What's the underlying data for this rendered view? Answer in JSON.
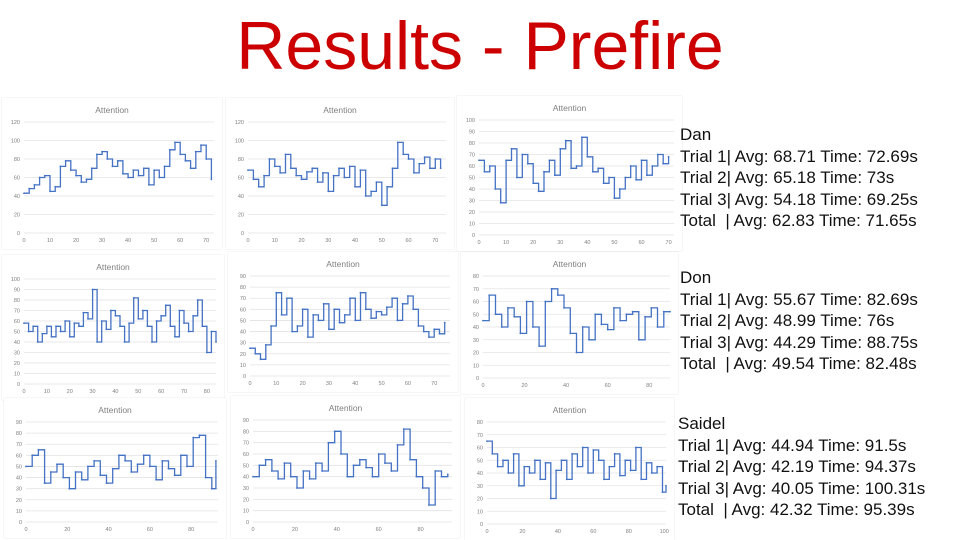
{
  "slide_title": "Results - Prefire",
  "summaries": [
    {
      "name": "Dan",
      "lines": [
        "Trial 1| Avg: 68.71 Time: 72.69s",
        "Trial 2| Avg: 65.18 Time: 73s",
        "Trial 3| Avg: 54.18 Time: 69.25s",
        "Total  | Avg: 62.83 Time: 71.65s"
      ]
    },
    {
      "name": "Don",
      "lines": [
        "Trial 1| Avg: 55.67 Time: 82.69s",
        "Trial 2| Avg: 48.99 Time: 76s",
        "Trial 3| Avg: 44.29 Time: 88.75s",
        "Total  | Avg: 49.54 Time: 82.48s"
      ]
    },
    {
      "name": "Saidel",
      "lines": [
        "Trial 1| Avg: 44.94 Time: 91.5s",
        "Trial 2| Avg: 42.19 Time: 94.37s",
        "Trial 3| Avg: 40.05 Time: 100.31s",
        "Total  | Avg: 42.32 Time: 95.39s"
      ]
    }
  ],
  "chart_data": [
    {
      "type": "line",
      "title": "Attention",
      "series_color": "#4472c4",
      "xticks": [
        0,
        10,
        20,
        30,
        40,
        50,
        60,
        70
      ],
      "yticks": [
        0,
        20,
        40,
        60,
        80,
        100,
        120
      ],
      "xlim": [
        0,
        73
      ],
      "ylim": [
        0,
        120
      ],
      "x": [
        0,
        2,
        4,
        6,
        8,
        10,
        12,
        14,
        16,
        18,
        20,
        22,
        24,
        26,
        28,
        30,
        32,
        34,
        36,
        38,
        40,
        42,
        44,
        46,
        48,
        50,
        52,
        54,
        56,
        58,
        60,
        62,
        64,
        66,
        68,
        70,
        72
      ],
      "values": [
        43,
        48,
        52,
        60,
        62,
        45,
        50,
        72,
        78,
        68,
        62,
        55,
        58,
        70,
        85,
        88,
        80,
        72,
        78,
        64,
        60,
        68,
        62,
        70,
        52,
        68,
        60,
        72,
        90,
        98,
        85,
        78,
        70,
        88,
        95,
        80,
        58
      ]
    },
    {
      "type": "line",
      "title": "Attention",
      "series_color": "#4472c4",
      "xticks": [
        0,
        10,
        20,
        30,
        40,
        50,
        60,
        70
      ],
      "yticks": [
        0,
        20,
        40,
        60,
        80,
        100,
        120
      ],
      "xlim": [
        0,
        74
      ],
      "ylim": [
        0,
        120
      ],
      "x": [
        0,
        2,
        4,
        6,
        8,
        10,
        12,
        14,
        16,
        18,
        20,
        22,
        24,
        26,
        28,
        30,
        32,
        34,
        36,
        38,
        40,
        42,
        44,
        46,
        48,
        50,
        52,
        54,
        56,
        58,
        60,
        62,
        64,
        66,
        68,
        70,
        72
      ],
      "values": [
        68,
        58,
        50,
        62,
        80,
        72,
        65,
        85,
        70,
        62,
        58,
        66,
        70,
        55,
        65,
        45,
        62,
        70,
        60,
        72,
        50,
        68,
        40,
        45,
        55,
        30,
        50,
        70,
        98,
        85,
        80,
        65,
        75,
        82,
        70,
        80,
        70
      ]
    },
    {
      "type": "line",
      "title": "Attention",
      "series_color": "#4472c4",
      "xticks": [
        0,
        10,
        20,
        30,
        40,
        50,
        60,
        70
      ],
      "yticks": [
        0,
        10,
        20,
        30,
        40,
        50,
        60,
        70,
        80,
        90,
        100
      ],
      "xlim": [
        0,
        72
      ],
      "ylim": [
        0,
        100
      ],
      "x": [
        0,
        2,
        4,
        6,
        8,
        10,
        12,
        14,
        16,
        18,
        20,
        22,
        24,
        26,
        28,
        30,
        32,
        34,
        36,
        38,
        40,
        42,
        44,
        46,
        48,
        50,
        52,
        54,
        56,
        58,
        60,
        62,
        64,
        66,
        68,
        70
      ],
      "values": [
        65,
        55,
        60,
        40,
        28,
        65,
        75,
        50,
        70,
        62,
        45,
        38,
        55,
        65,
        52,
        75,
        82,
        58,
        60,
        85,
        68,
        55,
        58,
        45,
        50,
        32,
        40,
        50,
        60,
        48,
        65,
        52,
        60,
        70,
        62,
        68
      ]
    },
    {
      "type": "line",
      "title": "Attention",
      "series_color": "#4472c4",
      "xticks": [
        0,
        10,
        20,
        30,
        40,
        50,
        60,
        70,
        80
      ],
      "yticks": [
        0,
        10,
        20,
        30,
        40,
        50,
        60,
        70,
        80,
        90,
        100
      ],
      "xlim": [
        0,
        84
      ],
      "ylim": [
        0,
        100
      ],
      "x": [
        0,
        2,
        4,
        6,
        8,
        10,
        12,
        14,
        16,
        18,
        20,
        22,
        24,
        26,
        28,
        30,
        32,
        34,
        36,
        38,
        40,
        42,
        44,
        46,
        48,
        50,
        52,
        54,
        56,
        58,
        60,
        62,
        64,
        66,
        68,
        70,
        72,
        74,
        76,
        78,
        80,
        82,
        84
      ],
      "values": [
        58,
        50,
        55,
        40,
        48,
        55,
        45,
        55,
        50,
        60,
        45,
        58,
        55,
        68,
        62,
        90,
        40,
        60,
        52,
        70,
        65,
        55,
        40,
        58,
        82,
        62,
        70,
        55,
        40,
        60,
        65,
        75,
        55,
        45,
        70,
        58,
        50,
        65,
        80,
        55,
        30,
        50,
        40
      ]
    },
    {
      "type": "line",
      "title": "Attention",
      "series_color": "#4472c4",
      "xticks": [
        0,
        10,
        20,
        30,
        40,
        50,
        60,
        70
      ],
      "yticks": [
        0,
        10,
        20,
        30,
        40,
        50,
        60,
        70,
        80,
        90
      ],
      "xlim": [
        0,
        76
      ],
      "ylim": [
        0,
        90
      ],
      "x": [
        0,
        2,
        4,
        6,
        8,
        10,
        12,
        14,
        16,
        18,
        20,
        22,
        24,
        26,
        28,
        30,
        32,
        34,
        36,
        38,
        40,
        42,
        44,
        46,
        48,
        50,
        52,
        54,
        56,
        58,
        60,
        62,
        64,
        66,
        68,
        70,
        72,
        74
      ],
      "values": [
        25,
        20,
        15,
        28,
        45,
        75,
        55,
        70,
        40,
        45,
        60,
        35,
        55,
        50,
        65,
        42,
        60,
        48,
        55,
        70,
        50,
        75,
        60,
        52,
        58,
        55,
        62,
        70,
        50,
        65,
        72,
        60,
        45,
        40,
        35,
        42,
        38,
        48
      ]
    },
    {
      "type": "line",
      "title": "Attention",
      "series_color": "#4472c4",
      "xticks": [
        0,
        20,
        40,
        60,
        80
      ],
      "yticks": [
        0,
        10,
        20,
        30,
        40,
        50,
        60,
        70,
        80
      ],
      "xlim": [
        0,
        90
      ],
      "ylim": [
        0,
        80
      ],
      "x": [
        0,
        3,
        6,
        9,
        12,
        15,
        18,
        21,
        24,
        27,
        30,
        33,
        36,
        39,
        42,
        45,
        48,
        51,
        54,
        57,
        60,
        63,
        66,
        69,
        72,
        75,
        78,
        81,
        84,
        87,
        90
      ],
      "values": [
        45,
        65,
        50,
        40,
        55,
        48,
        35,
        60,
        40,
        25,
        60,
        70,
        65,
        55,
        35,
        20,
        40,
        30,
        50,
        42,
        38,
        55,
        45,
        50,
        52,
        30,
        48,
        55,
        40,
        52,
        52
      ]
    },
    {
      "type": "line",
      "title": "Attention",
      "series_color": "#4472c4",
      "xticks": [
        0,
        20,
        40,
        60,
        80
      ],
      "yticks": [
        0,
        10,
        20,
        30,
        40,
        50,
        60,
        70,
        80,
        90
      ],
      "xlim": [
        0,
        93
      ],
      "ylim": [
        0,
        90
      ],
      "x": [
        0,
        3,
        6,
        9,
        12,
        15,
        18,
        21,
        24,
        27,
        30,
        33,
        36,
        39,
        42,
        45,
        48,
        51,
        54,
        57,
        60,
        63,
        66,
        69,
        72,
        75,
        78,
        81,
        84,
        87,
        90,
        92
      ],
      "values": [
        50,
        60,
        65,
        35,
        45,
        52,
        40,
        30,
        45,
        38,
        50,
        55,
        42,
        35,
        48,
        60,
        55,
        45,
        52,
        60,
        50,
        38,
        55,
        48,
        42,
        60,
        50,
        76,
        78,
        40,
        30,
        55
      ]
    },
    {
      "type": "line",
      "title": "Attention",
      "series_color": "#4472c4",
      "xticks": [
        0,
        20,
        40,
        60,
        80
      ],
      "yticks": [
        0,
        10,
        20,
        30,
        40,
        50,
        60,
        70,
        80,
        90
      ],
      "xlim": [
        0,
        95
      ],
      "ylim": [
        0,
        90
      ],
      "x": [
        0,
        3,
        6,
        9,
        12,
        15,
        18,
        21,
        24,
        27,
        30,
        33,
        36,
        39,
        42,
        45,
        48,
        51,
        54,
        57,
        60,
        63,
        66,
        69,
        72,
        75,
        78,
        81,
        84,
        87,
        90,
        93
      ],
      "values": [
        40,
        50,
        55,
        45,
        38,
        52,
        40,
        30,
        45,
        38,
        52,
        45,
        70,
        80,
        60,
        40,
        50,
        55,
        48,
        40,
        60,
        52,
        45,
        68,
        82,
        55,
        40,
        30,
        15,
        45,
        40,
        42
      ]
    },
    {
      "type": "line",
      "title": "Attention",
      "series_color": "#4472c4",
      "xticks": [
        0,
        20,
        40,
        60,
        80,
        100
      ],
      "yticks": [
        0,
        10,
        20,
        30,
        40,
        50,
        60,
        70,
        80
      ],
      "xlim": [
        0,
        101
      ],
      "ylim": [
        0,
        80
      ],
      "x": [
        0,
        3,
        6,
        9,
        12,
        15,
        18,
        21,
        24,
        27,
        30,
        33,
        36,
        39,
        42,
        45,
        48,
        51,
        54,
        57,
        60,
        63,
        66,
        69,
        72,
        75,
        78,
        81,
        84,
        87,
        90,
        93,
        96,
        99,
        101
      ],
      "values": [
        65,
        55,
        45,
        50,
        40,
        55,
        30,
        45,
        40,
        50,
        35,
        48,
        20,
        42,
        50,
        35,
        55,
        45,
        60,
        40,
        58,
        50,
        35,
        45,
        55,
        38,
        50,
        42,
        60,
        35,
        48,
        40,
        45,
        25,
        30
      ]
    }
  ]
}
